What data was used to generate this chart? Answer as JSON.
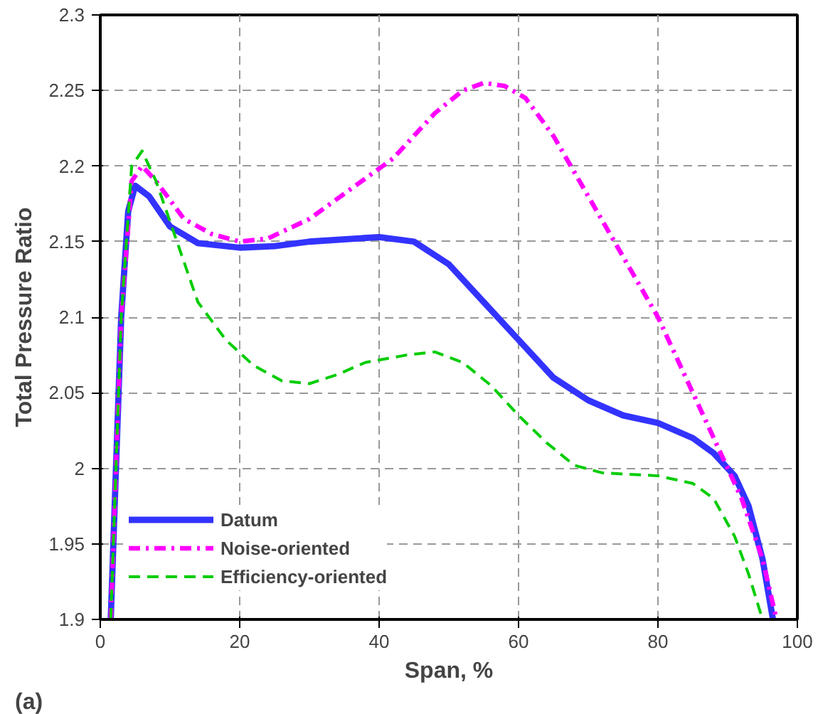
{
  "chart_data": {
    "type": "line",
    "xlabel": "Span, %",
    "ylabel": "Total Pressure Ratio",
    "annotations": [
      "(a)"
    ],
    "xlim": [
      0,
      100
    ],
    "ylim": [
      1.9,
      2.3
    ],
    "xticks": [
      0,
      20,
      40,
      60,
      80,
      100
    ],
    "yticks": [
      1.9,
      1.95,
      2,
      2.05,
      2.1,
      2.15,
      2.2,
      2.25,
      2.3
    ],
    "grid": true,
    "legend": "bottom left",
    "marker": "none",
    "series": [
      {
        "name": "Datum",
        "color": "#3333ff",
        "line_style": "solid",
        "x": [
          1.5,
          3,
          4,
          5,
          7,
          10,
          14,
          20,
          25,
          30,
          40,
          45,
          50,
          55,
          60,
          65,
          70,
          75,
          80,
          85,
          88,
          91,
          93,
          95,
          96.5
        ],
        "values": [
          1.9,
          2.1,
          2.17,
          2.187,
          2.18,
          2.16,
          2.149,
          2.146,
          2.147,
          2.15,
          2.153,
          2.15,
          2.135,
          2.11,
          2.085,
          2.06,
          2.045,
          2.035,
          2.03,
          2.02,
          2.01,
          1.995,
          1.975,
          1.94,
          1.9
        ]
      },
      {
        "name": "Noise-oriented",
        "color": "#ff00ff",
        "line_style": "dashdot",
        "x": [
          1.5,
          3,
          4.5,
          6,
          8,
          12,
          16,
          20,
          24,
          30,
          36,
          42,
          48,
          52,
          55,
          58,
          61,
          65,
          70,
          75,
          80,
          85,
          89,
          92,
          95,
          97
        ],
        "values": [
          1.9,
          2.1,
          2.19,
          2.2,
          2.19,
          2.165,
          2.155,
          2.15,
          2.152,
          2.165,
          2.185,
          2.205,
          2.235,
          2.25,
          2.255,
          2.253,
          2.245,
          2.22,
          2.18,
          2.14,
          2.1,
          2.05,
          2.01,
          1.98,
          1.94,
          1.9
        ]
      },
      {
        "name": "Efficiency-oriented",
        "color": "#00cc00",
        "line_style": "dashed",
        "x": [
          1.5,
          3,
          4.5,
          6,
          8,
          11,
          14,
          18,
          22,
          26,
          30,
          34,
          38,
          44,
          48,
          52,
          56,
          60,
          64,
          68,
          72,
          80,
          85,
          88,
          91,
          93,
          95
        ],
        "values": [
          1.9,
          2.1,
          2.2,
          2.21,
          2.19,
          2.15,
          2.11,
          2.085,
          2.068,
          2.058,
          2.056,
          2.062,
          2.07,
          2.075,
          2.077,
          2.07,
          2.055,
          2.035,
          2.017,
          2.002,
          1.997,
          1.995,
          1.99,
          1.98,
          1.955,
          1.93,
          1.9
        ]
      }
    ]
  }
}
